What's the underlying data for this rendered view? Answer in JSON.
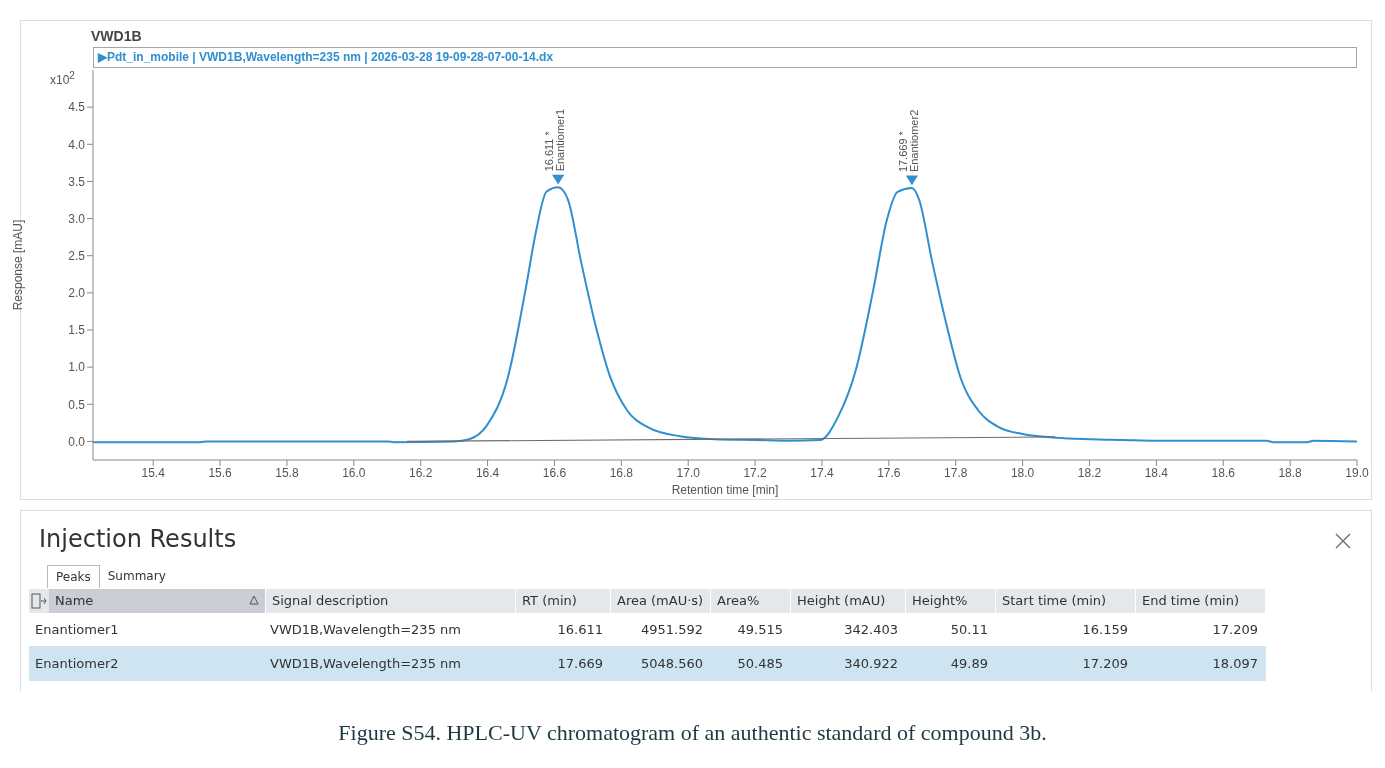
{
  "chart_data": {
    "type": "line",
    "title": "VWD1B",
    "subtitle": "▶Pdt_in_mobile | VWD1B,Wavelength=235 nm | 2026-03-28 19-09-28-07-00-14.dx",
    "xlabel": "Retention time [min]",
    "ylabel": "Response [mAU]",
    "xlim": [
      15.22,
      19.0
    ],
    "xticks": [
      15.4,
      15.6,
      15.8,
      {
        "value": 16,
        "label": "16.0"
      },
      16.2,
      16.4,
      16.6,
      16.8,
      {
        "value": 17,
        "label": "17.0"
      },
      17.2,
      17.4,
      17.6,
      17.8,
      {
        "value": 18,
        "label": "18.0"
      },
      18.2,
      18.4,
      18.6,
      18.8,
      {
        "value": 19,
        "label": "19.0"
      }
    ],
    "ylim": [
      -0.25,
      5.0
    ],
    "yticks": [
      {
        "value": 0,
        "label": "0.0"
      },
      0.5,
      {
        "value": 1,
        "label": "1.0"
      },
      1.5,
      {
        "value": 2,
        "label": "2.0"
      },
      2.5,
      {
        "value": 3,
        "label": "3.0"
      },
      3.5,
      {
        "value": 4,
        "label": "4.0"
      },
      4.5
    ],
    "series": [
      {
        "color": "#2f8fcf",
        "x": [
          15.22,
          15.54,
          15.56,
          16.1,
          16.12,
          16.3,
          16.345,
          16.397,
          16.46,
          16.513,
          16.545,
          16.576,
          16.611,
          16.64,
          16.68,
          16.723,
          16.765,
          16.817,
          16.88,
          16.975,
          17.08,
          17.2,
          17.3,
          17.395,
          17.448,
          17.5,
          17.553,
          17.594,
          17.626,
          17.669,
          17.69,
          17.73,
          17.773,
          17.815,
          17.867,
          17.93,
          18.0,
          18.1,
          18.2,
          18.3,
          18.4,
          18.73,
          18.75,
          18.85,
          18.87,
          19.0
        ],
        "values": [
          -0.01,
          -0.01,
          0.0,
          0.0,
          -0.01,
          0.0,
          0.03,
          0.21,
          0.85,
          2.03,
          2.83,
          3.36,
          3.42,
          3.26,
          2.41,
          1.56,
          0.89,
          0.42,
          0.19,
          0.07,
          0.03,
          0.02,
          0.01,
          0.02,
          0.33,
          0.94,
          2.03,
          2.98,
          3.36,
          3.41,
          3.26,
          2.41,
          1.56,
          0.85,
          0.42,
          0.19,
          0.1,
          0.05,
          0.03,
          0.02,
          0.01,
          0.01,
          -0.01,
          -0.01,
          0.01,
          0.0
        ]
      },
      {
        "color": "#6e6e6e",
        "x": [
          16.159,
          18.097
        ],
        "values": [
          0.0,
          0.06
        ]
      }
    ],
    "annotations": [
      "x10$^{2}$",
      {
        "text": "16.611 *\nEnantiomer1",
        "x": 16.611,
        "y": 3.42
      },
      {
        "text": "17.669 *\nEnantiomer2",
        "x": 17.669,
        "y": 3.41
      },
      "Injection Results",
      "Peaks",
      "Summary",
      "Name",
      "Signal description",
      "RT (min)",
      "Area (mAU·s)",
      "Area%",
      "Height (mAU)",
      "Height%",
      "Start time (min)",
      "End time (min)",
      "Enantiomer1",
      "VWD1B,Wavelength=235 nm",
      "16.611",
      "4951.592",
      "49.515",
      "342.403",
      "50.11",
      "16.159",
      "17.209",
      "Enantiomer2",
      "VWD1B,Wavelength=235 nm",
      "17.669",
      "5048.560",
      "50.485",
      "340.922",
      "49.89",
      "17.209",
      "18.097",
      "Figure S54. HPLC-UV chromatogram of an authentic standard of compound 3b."
    ]
  }
}
